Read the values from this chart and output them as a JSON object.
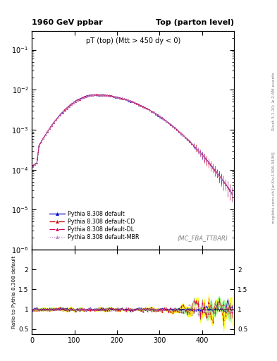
{
  "title_left": "1960 GeV ppbar",
  "title_right": "Top (parton level)",
  "main_label": "pT (top) (Mtt > 450 dy < 0)",
  "watermark": "(MC_FBA_TTBAR)",
  "right_label_top": "Rivet 3.1.10; ≥ 2.6M events",
  "right_label_bottom": "mcplots.cern.ch [arXiv:1306.3436]",
  "ylabel_ratio": "Ratio to Pythia 8.308 default",
  "series": [
    {
      "label": "Pythia 8.308 default",
      "color": "#0000cc",
      "linestyle": "-",
      "marker": "^"
    },
    {
      "label": "Pythia 8.308 default-CD",
      "color": "#cc0000",
      "linestyle": "-.",
      "marker": "^"
    },
    {
      "label": "Pythia 8.308 default-DL",
      "color": "#dd0055",
      "linestyle": "-.",
      "marker": "^"
    },
    {
      "label": "Pythia 8.308 default-MBR",
      "color": "#bb88cc",
      "linestyle": ":",
      "marker": "^"
    }
  ],
  "band_yellow": "#ffff00",
  "band_green": "#88ff88",
  "xlim": [
    0,
    475
  ],
  "ylim_main": [
    1e-06,
    0.3
  ],
  "ylim_ratio": [
    0.38,
    2.5
  ],
  "ratio_yticks": [
    0.5,
    1.0,
    1.5,
    2.0
  ],
  "main_yticks": [
    1e-06,
    1e-05,
    0.0001,
    0.001,
    0.01,
    0.1
  ],
  "xticks": [
    0,
    100,
    200,
    300,
    400
  ]
}
